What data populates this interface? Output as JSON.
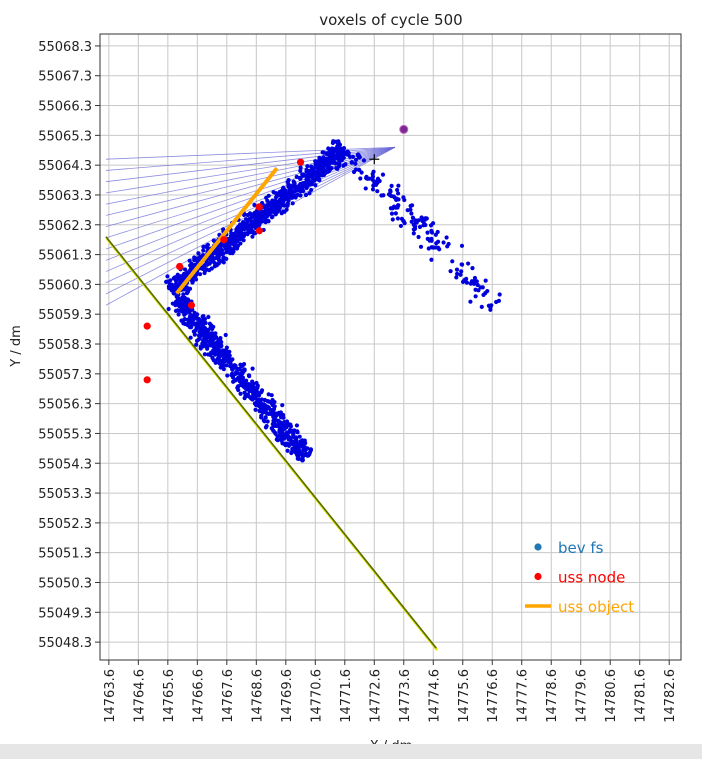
{
  "chart_data": {
    "type": "scatter",
    "title": "voxels of cycle 500",
    "xlabel": "X / dm",
    "ylabel": "Y / dm",
    "xlim": [
      14763.3,
      14783.0
    ],
    "ylim": [
      55047.7,
      55068.7
    ],
    "xticks": [
      "14763.6",
      "14764.6",
      "14765.6",
      "14766.6",
      "14767.6",
      "14768.6",
      "14769.6",
      "14770.6",
      "14771.6",
      "14772.6",
      "14773.6",
      "14774.6",
      "14775.6",
      "14776.6",
      "14777.6",
      "14778.6",
      "14779.6",
      "14780.6",
      "14781.6",
      "14782.6"
    ],
    "yticks": [
      "55068.3",
      "55067.3",
      "55066.3",
      "55065.3",
      "55064.3",
      "55063.3",
      "55062.3",
      "55061.3",
      "55060.3",
      "55059.3",
      "55058.3",
      "55057.3",
      "55056.3",
      "55055.3",
      "55054.3",
      "55053.3",
      "55052.3",
      "55051.3",
      "55050.3",
      "55049.3",
      "55048.3"
    ],
    "grid": true,
    "legend": {
      "placement": "lower-right",
      "entries": [
        {
          "label": "bev fs",
          "color": "#1f77b4",
          "marker": "dot"
        },
        {
          "label": "uss node",
          "color": "#ff0000",
          "marker": "dot"
        },
        {
          "label": "uss object",
          "color": "#ffa500",
          "marker": "line"
        }
      ]
    },
    "series": [
      {
        "name": "bev fs",
        "color": "#0000dd",
        "clusters": [
          {
            "from": [
              14765.7,
              55060.1
            ],
            "to": [
              14771.6,
              55064.9
            ],
            "spread": 0.32,
            "count": 900
          },
          {
            "from": [
              14765.9,
              55059.8
            ],
            "to": [
              14770.3,
              55054.5
            ],
            "spread": 0.32,
            "count": 700
          },
          {
            "from": [
              14771.8,
              55064.6
            ],
            "to": [
              14776.7,
              55059.6
            ],
            "spread": 0.38,
            "count": 170
          }
        ]
      },
      {
        "name": "uss node",
        "color": "#ff0000",
        "points": [
          [
            14766.0,
            55060.9
          ],
          [
            14766.4,
            55059.6
          ],
          [
            14767.5,
            55061.8
          ],
          [
            14768.7,
            55062.9
          ],
          [
            14768.7,
            55062.1
          ],
          [
            14770.1,
            55064.4
          ],
          [
            14764.9,
            55058.9
          ],
          [
            14764.9,
            55057.1
          ]
        ]
      },
      {
        "name": "uss object",
        "color": "#ffa500",
        "line": [
          [
            14765.9,
            55060.0
          ],
          [
            14769.3,
            55064.2
          ]
        ]
      }
    ],
    "boundary_line": {
      "color": "#556b00",
      "highlight": "#e6e600",
      "points": [
        [
          14763.5,
          55061.9
        ],
        [
          14774.7,
          55048.1
        ]
      ]
    },
    "ray_lines": {
      "color": "#6a6ad8",
      "target": [
        14773.3,
        55064.9
      ],
      "start_x": 14763.5,
      "y_start": 55059.6,
      "y_end": 55064.5,
      "count": 14
    },
    "marker_point": {
      "x": 14773.6,
      "y": 55065.5,
      "color": "#7a2a90"
    },
    "cursor_point": {
      "x": 14772.6,
      "y": 55064.5
    }
  }
}
